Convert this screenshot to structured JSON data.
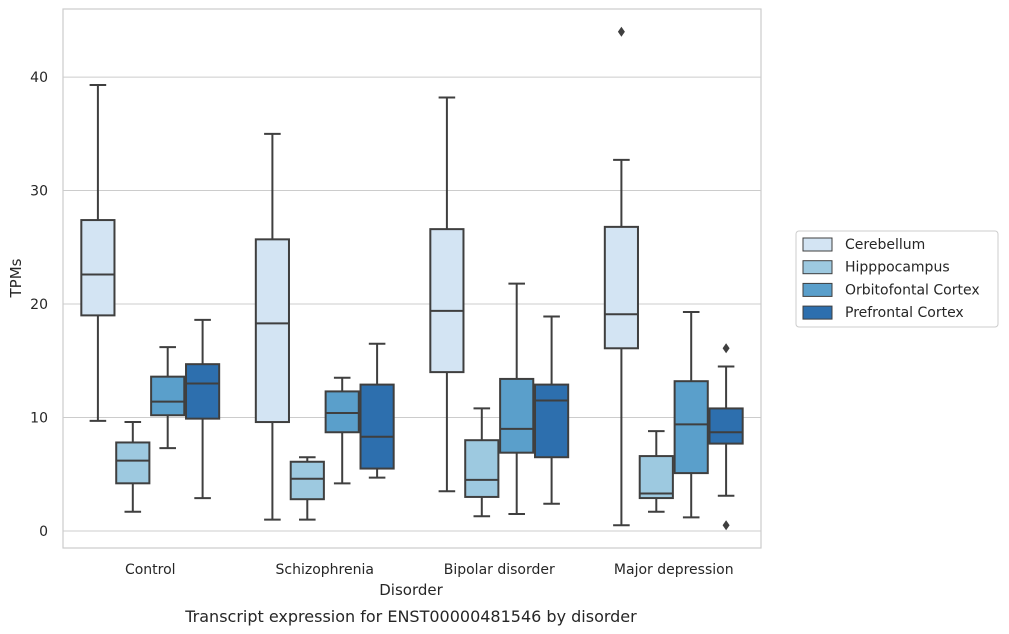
{
  "chart_data": {
    "type": "boxplot",
    "xlabel": "Disorder",
    "ylabel": "TPMs",
    "caption": "Transcript expression for ENST00000481546 by disorder",
    "ylim": [
      -1.5,
      46
    ],
    "yticks": [
      0,
      10,
      20,
      30,
      40
    ],
    "grid": "horizontal",
    "legend_position": "right",
    "categories": [
      "Control",
      "Schizophrenia",
      "Bipolar disorder",
      "Major depression"
    ],
    "series": [
      {
        "name": "Cerebellum",
        "color": "#d3e4f3",
        "boxes": [
          {
            "whislo": 9.7,
            "q1": 19.0,
            "med": 22.6,
            "q3": 27.4,
            "whishi": 39.3,
            "fliers": []
          },
          {
            "whislo": 1.0,
            "q1": 9.6,
            "med": 18.3,
            "q3": 25.7,
            "whishi": 35.0,
            "fliers": []
          },
          {
            "whislo": 3.5,
            "q1": 14.0,
            "med": 19.4,
            "q3": 26.6,
            "whishi": 38.2,
            "fliers": []
          },
          {
            "whislo": 0.5,
            "q1": 16.1,
            "med": 19.1,
            "q3": 26.8,
            "whishi": 32.7,
            "fliers": [
              44.0
            ]
          }
        ]
      },
      {
        "name": "Hipppocampus",
        "color": "#9dc9e0",
        "boxes": [
          {
            "whislo": 1.7,
            "q1": 4.2,
            "med": 6.2,
            "q3": 7.8,
            "whishi": 9.6,
            "fliers": []
          },
          {
            "whislo": 1.0,
            "q1": 2.8,
            "med": 4.6,
            "q3": 6.1,
            "whishi": 6.5,
            "fliers": []
          },
          {
            "whislo": 1.3,
            "q1": 3.0,
            "med": 4.5,
            "q3": 8.0,
            "whishi": 10.8,
            "fliers": []
          },
          {
            "whislo": 1.7,
            "q1": 2.9,
            "med": 3.3,
            "q3": 6.6,
            "whishi": 8.8,
            "fliers": []
          }
        ]
      },
      {
        "name": "Orbitofontal Cortex",
        "color": "#5a9fcb",
        "boxes": [
          {
            "whislo": 7.3,
            "q1": 10.2,
            "med": 11.4,
            "q3": 13.6,
            "whishi": 16.2,
            "fliers": []
          },
          {
            "whislo": 4.2,
            "q1": 8.7,
            "med": 10.4,
            "q3": 12.3,
            "whishi": 13.5,
            "fliers": []
          },
          {
            "whislo": 1.5,
            "q1": 6.9,
            "med": 9.0,
            "q3": 13.4,
            "whishi": 21.8,
            "fliers": []
          },
          {
            "whislo": 1.2,
            "q1": 5.1,
            "med": 9.4,
            "q3": 13.2,
            "whishi": 19.3,
            "fliers": []
          }
        ]
      },
      {
        "name": "Prefrontal Cortex",
        "color": "#2d6fae",
        "boxes": [
          {
            "whislo": 2.9,
            "q1": 9.9,
            "med": 13.0,
            "q3": 14.7,
            "whishi": 18.6,
            "fliers": []
          },
          {
            "whislo": 4.7,
            "q1": 5.5,
            "med": 8.3,
            "q3": 12.9,
            "whishi": 16.5,
            "fliers": []
          },
          {
            "whislo": 2.4,
            "q1": 6.5,
            "med": 11.5,
            "q3": 12.9,
            "whishi": 18.9,
            "fliers": []
          },
          {
            "whislo": 3.1,
            "q1": 7.7,
            "med": 8.7,
            "q3": 10.8,
            "whishi": 14.5,
            "fliers": [
              16.1,
              0.5
            ]
          }
        ]
      }
    ]
  }
}
